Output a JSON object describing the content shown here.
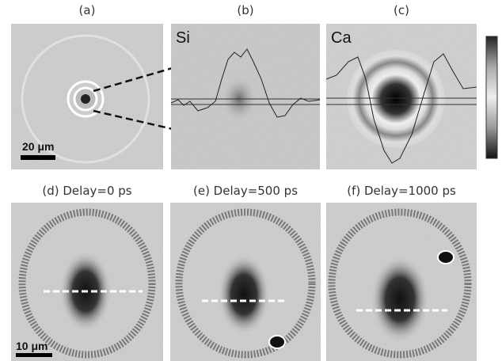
{
  "panels": [
    {
      "label": "(a)",
      "scale_bar": "20 μm"
    },
    {
      "label": "(b)",
      "element": "Si"
    },
    {
      "label": "(c)",
      "element": "Ca"
    },
    {
      "label": "(d) Delay=0 ps",
      "scale_bar": "10 μm"
    },
    {
      "label": "(e) Delay=500 ps"
    },
    {
      "label": "(f) Delay=1000 ps"
    }
  ]
}
